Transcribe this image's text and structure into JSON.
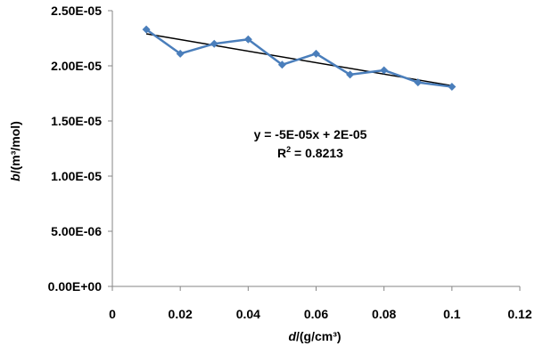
{
  "chart_data": {
    "type": "scatter",
    "xlabel_italic": "d",
    "xlabel_rest": "/(g/cm³)",
    "ylabel_italic": "b",
    "ylabel_rest": "/(m³/mol)",
    "xlim": [
      0,
      0.12
    ],
    "ylim": [
      0,
      2.5e-05
    ],
    "x_ticks": [
      {
        "value": 0,
        "label": "0"
      },
      {
        "value": 0.02,
        "label": "0.02"
      },
      {
        "value": 0.04,
        "label": "0.04"
      },
      {
        "value": 0.06,
        "label": "0.06"
      },
      {
        "value": 0.08,
        "label": "0.08"
      },
      {
        "value": 0.1,
        "label": "0.1"
      },
      {
        "value": 0.12,
        "label": "0.12"
      }
    ],
    "y_ticks": [
      {
        "value": 0,
        "label": "0.00E+00"
      },
      {
        "value": 5e-06,
        "label": "5.00E-06"
      },
      {
        "value": 1e-05,
        "label": "1.00E-05"
      },
      {
        "value": 1.5e-05,
        "label": "1.50E-05"
      },
      {
        "value": 2e-05,
        "label": "2.00E-05"
      },
      {
        "value": 2.5e-05,
        "label": "2.50E-05"
      }
    ],
    "grid": false,
    "series": [
      {
        "color": "#4a7ebb",
        "marker": "diamond",
        "line": true,
        "x": [
          0.01,
          0.02,
          0.03,
          0.04,
          0.05,
          0.06,
          0.07,
          0.08,
          0.09,
          0.1
        ],
        "y": [
          2.33e-05,
          2.11e-05,
          2.2e-05,
          2.24e-05,
          2.01e-05,
          2.11e-05,
          1.92e-05,
          1.96e-05,
          1.85e-05,
          1.81e-05
        ]
      }
    ],
    "trendline": {
      "color": "#000000",
      "x": [
        0.01,
        0.1
      ],
      "y": [
        2.29e-05,
        1.82e-05
      ]
    },
    "equation": "y = -5E-05x + 2E-05",
    "r_squared_label": "R",
    "r_squared_exp": "2",
    "r_squared_value": " = 0.8213"
  }
}
